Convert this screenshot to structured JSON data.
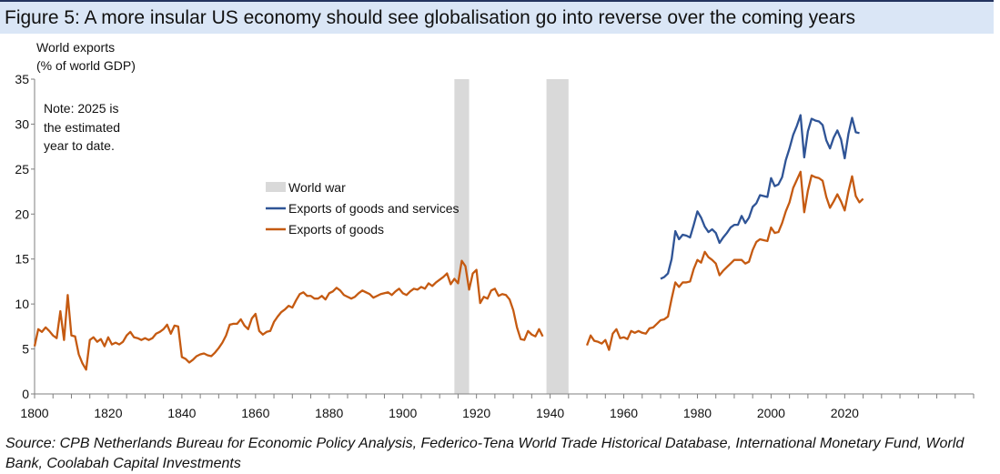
{
  "header": {
    "title": "Figure 5: A more insular US economy should see globalisation go into reverse over the coming years"
  },
  "footer": {
    "source": "Source: CPB Netherlands Bureau for Economic Policy Analysis, Federico-Tena World Trade Historical Database, International Monetary Fund, World Bank, Coolabah Capital Investments"
  },
  "colors": {
    "goods_services": "#2f5496",
    "goods": "#c55a11",
    "war": "#d9d9d9",
    "axis": "#7f7f7f"
  },
  "chart_data": {
    "type": "line",
    "title": "Figure 5: A more insular US economy should see globalisation go into reverse over the coming years",
    "ylabel_lines": [
      "World exports",
      "(% of world GDP)"
    ],
    "xlabel": "",
    "xlim": [
      1800,
      2055
    ],
    "ylim": [
      0,
      35
    ],
    "yticks": [
      0,
      5,
      10,
      15,
      20,
      25,
      30,
      35
    ],
    "xtick_labels": [
      1800,
      1820,
      1840,
      1860,
      1880,
      1900,
      1920,
      1940,
      1960,
      1980,
      2000,
      2020
    ],
    "grid": false,
    "legend_position": "center-left",
    "note_lines": [
      "Note: 2025 is",
      "the estimated",
      "year to date."
    ],
    "shaded_periods": [
      {
        "name": "World war",
        "start": 1914,
        "end": 1918
      },
      {
        "name": "World war",
        "start": 1939,
        "end": 1945
      }
    ],
    "series": [
      {
        "name": "Exports of goods and services",
        "color_key": "goods_services",
        "points": [
          [
            1970,
            12.8
          ],
          [
            1971,
            13.0
          ],
          [
            1972,
            13.4
          ],
          [
            1973,
            15.0
          ],
          [
            1974,
            18.1
          ],
          [
            1975,
            17.2
          ],
          [
            1976,
            17.7
          ],
          [
            1977,
            17.6
          ],
          [
            1978,
            17.4
          ],
          [
            1979,
            18.8
          ],
          [
            1980,
            20.3
          ],
          [
            1981,
            19.6
          ],
          [
            1982,
            18.6
          ],
          [
            1983,
            18.0
          ],
          [
            1984,
            18.3
          ],
          [
            1985,
            17.9
          ],
          [
            1986,
            16.8
          ],
          [
            1987,
            17.4
          ],
          [
            1988,
            17.9
          ],
          [
            1989,
            18.5
          ],
          [
            1990,
            18.8
          ],
          [
            1991,
            18.8
          ],
          [
            1992,
            19.8
          ],
          [
            1993,
            19.0
          ],
          [
            1994,
            19.6
          ],
          [
            1995,
            20.8
          ],
          [
            1996,
            21.2
          ],
          [
            1997,
            22.1
          ],
          [
            1998,
            22.0
          ],
          [
            1999,
            21.9
          ],
          [
            2000,
            24.0
          ],
          [
            2001,
            23.1
          ],
          [
            2002,
            23.3
          ],
          [
            2003,
            24.1
          ],
          [
            2004,
            26.0
          ],
          [
            2005,
            27.3
          ],
          [
            2006,
            28.8
          ],
          [
            2007,
            29.8
          ],
          [
            2008,
            31.0
          ],
          [
            2009,
            26.3
          ],
          [
            2010,
            29.2
          ],
          [
            2011,
            30.6
          ],
          [
            2012,
            30.4
          ],
          [
            2013,
            30.3
          ],
          [
            2014,
            29.9
          ],
          [
            2015,
            28.2
          ],
          [
            2016,
            27.3
          ],
          [
            2017,
            28.5
          ],
          [
            2018,
            29.3
          ],
          [
            2019,
            28.3
          ],
          [
            2020,
            26.2
          ],
          [
            2021,
            28.9
          ],
          [
            2022,
            30.7
          ],
          [
            2023,
            29.1
          ],
          [
            2024,
            29.0
          ]
        ]
      },
      {
        "name": "Exports of goods",
        "color_key": "goods",
        "points": [
          [
            1800,
            5.3
          ],
          [
            1801,
            7.2
          ],
          [
            1802,
            6.9
          ],
          [
            1803,
            7.4
          ],
          [
            1804,
            7.0
          ],
          [
            1805,
            6.5
          ],
          [
            1806,
            6.2
          ],
          [
            1807,
            9.2
          ],
          [
            1808,
            6.0
          ],
          [
            1809,
            11.0
          ],
          [
            1810,
            6.5
          ],
          [
            1811,
            6.4
          ],
          [
            1812,
            4.4
          ],
          [
            1813,
            3.4
          ],
          [
            1814,
            2.7
          ],
          [
            1815,
            6.0
          ],
          [
            1816,
            6.3
          ],
          [
            1817,
            5.8
          ],
          [
            1818,
            6.1
          ],
          [
            1819,
            5.3
          ],
          [
            1820,
            6.3
          ],
          [
            1821,
            5.5
          ],
          [
            1822,
            5.7
          ],
          [
            1823,
            5.5
          ],
          [
            1824,
            5.8
          ],
          [
            1825,
            6.5
          ],
          [
            1826,
            6.9
          ],
          [
            1827,
            6.3
          ],
          [
            1828,
            6.2
          ],
          [
            1829,
            6.0
          ],
          [
            1830,
            6.2
          ],
          [
            1831,
            6.0
          ],
          [
            1832,
            6.2
          ],
          [
            1833,
            6.7
          ],
          [
            1834,
            6.9
          ],
          [
            1835,
            7.2
          ],
          [
            1836,
            7.7
          ],
          [
            1837,
            6.7
          ],
          [
            1838,
            7.6
          ],
          [
            1839,
            7.5
          ],
          [
            1840,
            4.1
          ],
          [
            1841,
            3.9
          ],
          [
            1842,
            3.5
          ],
          [
            1843,
            3.8
          ],
          [
            1844,
            4.2
          ],
          [
            1845,
            4.4
          ],
          [
            1846,
            4.5
          ],
          [
            1847,
            4.3
          ],
          [
            1848,
            4.2
          ],
          [
            1849,
            4.6
          ],
          [
            1850,
            5.1
          ],
          [
            1851,
            5.7
          ],
          [
            1852,
            6.5
          ],
          [
            1853,
            7.7
          ],
          [
            1854,
            7.8
          ],
          [
            1855,
            7.8
          ],
          [
            1856,
            8.3
          ],
          [
            1857,
            7.6
          ],
          [
            1858,
            7.2
          ],
          [
            1859,
            8.4
          ],
          [
            1860,
            8.9
          ],
          [
            1861,
            7.0
          ],
          [
            1862,
            6.6
          ],
          [
            1863,
            6.9
          ],
          [
            1864,
            7.0
          ],
          [
            1865,
            8.0
          ],
          [
            1866,
            8.6
          ],
          [
            1867,
            9.1
          ],
          [
            1868,
            9.4
          ],
          [
            1869,
            9.8
          ],
          [
            1870,
            9.6
          ],
          [
            1871,
            10.4
          ],
          [
            1872,
            11.1
          ],
          [
            1873,
            11.3
          ],
          [
            1874,
            10.9
          ],
          [
            1875,
            10.9
          ],
          [
            1876,
            10.6
          ],
          [
            1877,
            10.6
          ],
          [
            1878,
            10.9
          ],
          [
            1879,
            10.5
          ],
          [
            1880,
            11.2
          ],
          [
            1881,
            11.4
          ],
          [
            1882,
            11.8
          ],
          [
            1883,
            11.5
          ],
          [
            1884,
            11.0
          ],
          [
            1885,
            10.8
          ],
          [
            1886,
            10.6
          ],
          [
            1887,
            10.8
          ],
          [
            1888,
            11.2
          ],
          [
            1889,
            11.5
          ],
          [
            1890,
            11.3
          ],
          [
            1891,
            11.1
          ],
          [
            1892,
            10.7
          ],
          [
            1893,
            10.9
          ],
          [
            1894,
            11.1
          ],
          [
            1895,
            11.2
          ],
          [
            1896,
            11.3
          ],
          [
            1897,
            11.0
          ],
          [
            1898,
            11.4
          ],
          [
            1899,
            11.7
          ],
          [
            1900,
            11.2
          ],
          [
            1901,
            11.0
          ],
          [
            1902,
            11.4
          ],
          [
            1903,
            11.7
          ],
          [
            1904,
            11.6
          ],
          [
            1905,
            11.9
          ],
          [
            1906,
            11.7
          ],
          [
            1907,
            12.3
          ],
          [
            1908,
            12.0
          ],
          [
            1909,
            12.4
          ],
          [
            1910,
            12.7
          ],
          [
            1911,
            13.0
          ],
          [
            1912,
            13.4
          ],
          [
            1913,
            12.2
          ],
          [
            1914,
            12.8
          ],
          [
            1915,
            12.3
          ],
          [
            1916,
            14.8
          ],
          [
            1917,
            14.2
          ],
          [
            1918,
            11.6
          ],
          [
            1919,
            13.4
          ],
          [
            1920,
            13.8
          ],
          [
            1921,
            10.1
          ],
          [
            1922,
            10.8
          ],
          [
            1923,
            10.6
          ],
          [
            1924,
            11.5
          ],
          [
            1925,
            11.7
          ],
          [
            1926,
            10.9
          ],
          [
            1927,
            11.1
          ],
          [
            1928,
            11.0
          ],
          [
            1929,
            10.5
          ],
          [
            1930,
            9.3
          ],
          [
            1931,
            7.4
          ],
          [
            1932,
            6.1
          ],
          [
            1933,
            6.0
          ],
          [
            1934,
            7.0
          ],
          [
            1935,
            6.6
          ],
          [
            1936,
            6.4
          ],
          [
            1937,
            7.2
          ],
          [
            1938,
            6.4
          ],
          [
            1950,
            5.4
          ],
          [
            1951,
            6.5
          ],
          [
            1952,
            5.9
          ],
          [
            1953,
            5.8
          ],
          [
            1954,
            5.6
          ],
          [
            1955,
            6.0
          ],
          [
            1956,
            4.9
          ],
          [
            1957,
            6.7
          ],
          [
            1958,
            7.2
          ],
          [
            1959,
            6.2
          ],
          [
            1960,
            6.3
          ],
          [
            1961,
            6.1
          ],
          [
            1962,
            7.0
          ],
          [
            1963,
            6.8
          ],
          [
            1964,
            7.0
          ],
          [
            1965,
            6.8
          ],
          [
            1966,
            6.7
          ],
          [
            1967,
            7.3
          ],
          [
            1968,
            7.4
          ],
          [
            1969,
            7.8
          ],
          [
            1970,
            8.2
          ],
          [
            1971,
            8.3
          ],
          [
            1972,
            8.6
          ],
          [
            1973,
            10.6
          ],
          [
            1974,
            12.4
          ],
          [
            1975,
            11.9
          ],
          [
            1976,
            12.4
          ],
          [
            1977,
            12.4
          ],
          [
            1978,
            12.5
          ],
          [
            1979,
            13.9
          ],
          [
            1980,
            14.9
          ],
          [
            1981,
            14.6
          ],
          [
            1982,
            15.8
          ],
          [
            1983,
            15.2
          ],
          [
            1984,
            14.9
          ],
          [
            1985,
            14.5
          ],
          [
            1986,
            13.2
          ],
          [
            1987,
            13.7
          ],
          [
            1988,
            14.1
          ],
          [
            1989,
            14.5
          ],
          [
            1990,
            14.9
          ],
          [
            1991,
            14.9
          ],
          [
            1992,
            14.9
          ],
          [
            1993,
            14.5
          ],
          [
            1994,
            14.7
          ],
          [
            1995,
            16.0
          ],
          [
            1996,
            16.9
          ],
          [
            1997,
            17.2
          ],
          [
            1998,
            17.1
          ],
          [
            1999,
            17.0
          ],
          [
            2000,
            18.5
          ],
          [
            2001,
            17.9
          ],
          [
            2002,
            18.0
          ],
          [
            2003,
            19.0
          ],
          [
            2004,
            20.3
          ],
          [
            2005,
            21.3
          ],
          [
            2006,
            22.9
          ],
          [
            2007,
            23.8
          ],
          [
            2008,
            24.7
          ],
          [
            2009,
            20.2
          ],
          [
            2010,
            22.6
          ],
          [
            2011,
            24.3
          ],
          [
            2012,
            24.1
          ],
          [
            2013,
            24.0
          ],
          [
            2014,
            23.7
          ],
          [
            2015,
            21.9
          ],
          [
            2016,
            20.7
          ],
          [
            2017,
            21.4
          ],
          [
            2018,
            22.2
          ],
          [
            2019,
            21.4
          ],
          [
            2020,
            20.4
          ],
          [
            2021,
            22.5
          ],
          [
            2022,
            24.2
          ],
          [
            2023,
            22.0
          ],
          [
            2024,
            21.3
          ],
          [
            2025,
            21.7
          ]
        ]
      }
    ]
  }
}
